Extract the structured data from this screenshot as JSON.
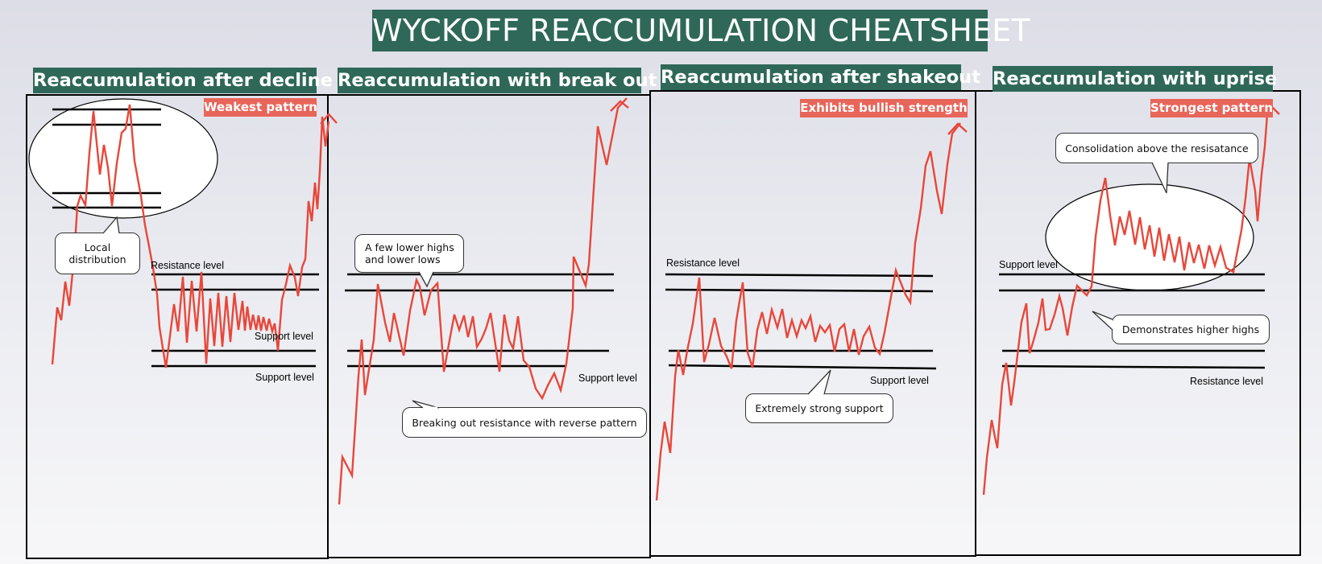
{
  "title": "WYCKOFF REACCUMULATION CHEATSHEET",
  "colors": {
    "title_bg": "#2f6858",
    "tag_bg": "#e8655a",
    "price_line": "#e8473a"
  },
  "panels": [
    {
      "title": "Reaccumulation after decline",
      "tag": "Weakest pattern",
      "labels": {
        "resistance": "Resistance level",
        "support_upper": "Support level",
        "support_lower": "Support level"
      },
      "callout": "Local\ndistribution"
    },
    {
      "title": "Reaccumulation with break out",
      "labels": {
        "support": "Support level"
      },
      "callouts": [
        "A few lower highs\nand lower lows",
        "Breaking out resistance with reverse pattern"
      ]
    },
    {
      "title": "Reaccumulation after shakeout",
      "tag": "Exhibits bullish strength",
      "labels": {
        "resistance": "Resistance level",
        "support": "Support level"
      },
      "callout": "Extremely strong support"
    },
    {
      "title": "Reaccumulation with uprise",
      "tag": "Strongest pattern",
      "labels": {
        "support": "Support level",
        "resistance": "Resistance level"
      },
      "callouts": [
        "Consolidation above the resisatance",
        "Demonstrates higher highs"
      ]
    }
  ]
}
